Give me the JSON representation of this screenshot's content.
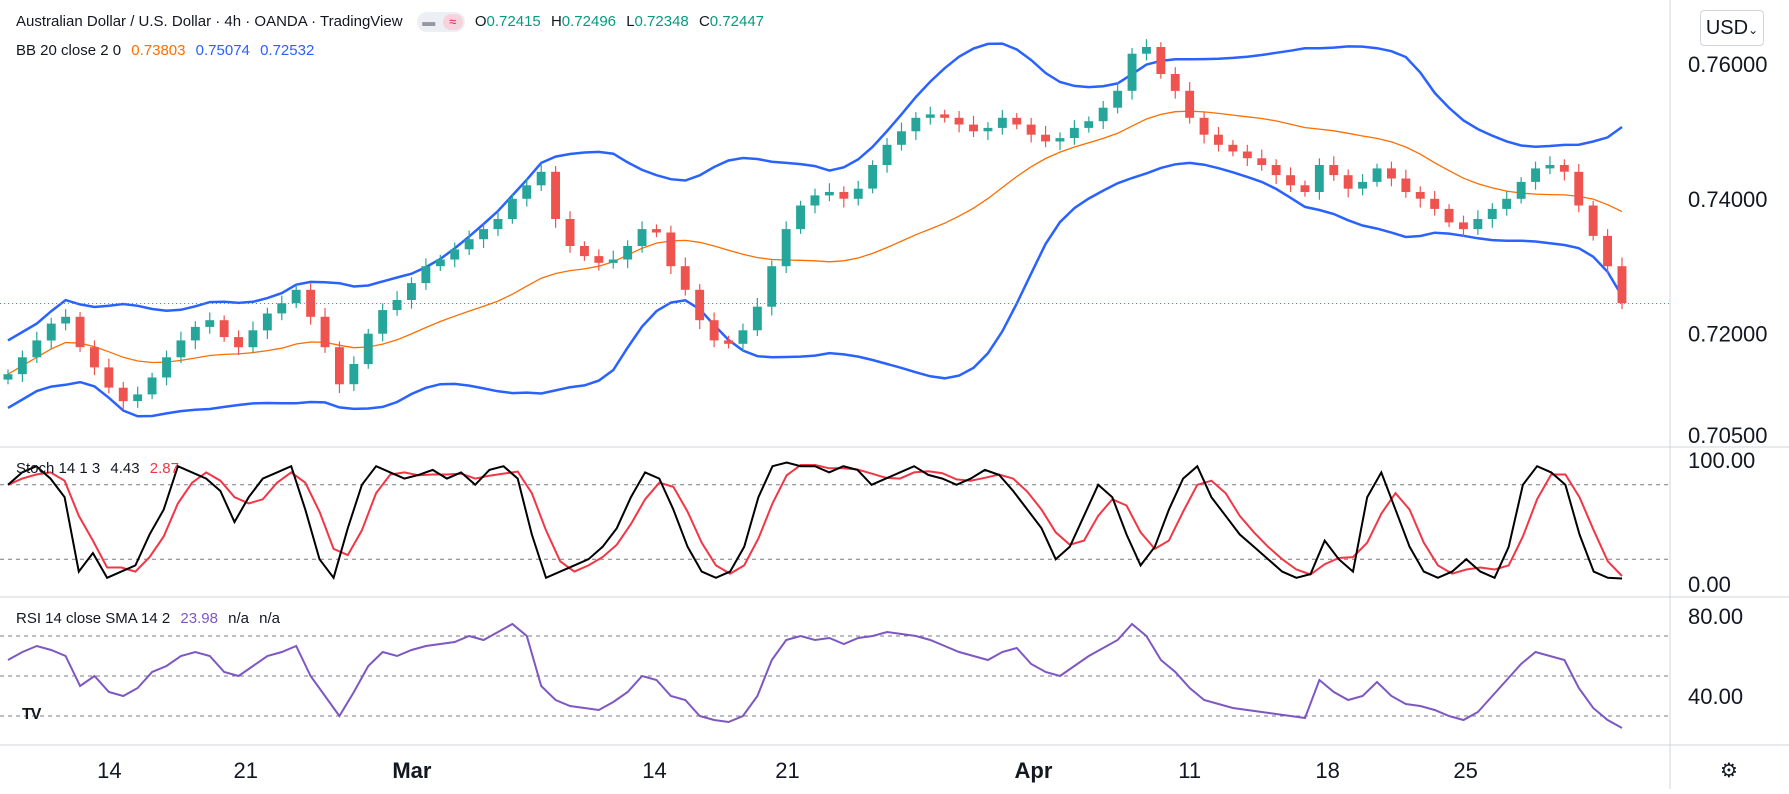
{
  "header": {
    "symbol_title": "Australian Dollar / U.S. Dollar · 4h · OANDA · TradingView",
    "ohlc": {
      "open_label": "O",
      "open": "0.72415",
      "high_label": "H",
      "high": "0.72496",
      "low_label": "L",
      "low": "0.72348",
      "close_label": "C",
      "close": "0.72447"
    }
  },
  "currency_button": "USD",
  "currency_chevron": "chevron-down-icon",
  "settings_icon": "gear-icon",
  "logo_text": "TV",
  "bb_legend": {
    "label": "BB 20 close 2 0",
    "middle": "0.73803",
    "upper": "0.75074",
    "lower": "0.72532"
  },
  "stoch_legend": {
    "label": "Stoch 14 1 3",
    "k": "4.43",
    "d": "2.87"
  },
  "rsi_legend": {
    "label": "RSI 14 close SMA 14 2",
    "value": "23.98",
    "sma": "n/a",
    "extra": "n/a"
  },
  "colors": {
    "up": "#26a69a",
    "down": "#ef5350",
    "bb_band": "#2962ff",
    "bb_basis": "#ff6d00",
    "stoch_k": "#000000",
    "stoch_d": "#f23645",
    "rsi": "#7e57c2",
    "text": "#131722",
    "legend_orange": "#ff6d00",
    "legend_blue": "#2962ff",
    "legend_purple": "#7e57c2",
    "legend_green": "#089981"
  },
  "chart_data": [
    {
      "type": "candlestick",
      "title": "Australian Dollar / U.S. Dollar · 4h · OANDA · TradingView",
      "x_tick_labels": [
        "14",
        "21",
        "Mar",
        "14",
        "21",
        "Apr",
        "11",
        "18",
        "25"
      ],
      "y_tick_labels": [
        "0.76000",
        "0.74000",
        "0.72000",
        "0.70500"
      ],
      "y_ticks": [
        0.76,
        0.74,
        0.72,
        0.705
      ],
      "ylim": [
        0.7035,
        0.7665
      ],
      "last_price": 0.72447,
      "close_approx": [
        0.714,
        0.7165,
        0.719,
        0.7215,
        0.7225,
        0.718,
        0.715,
        0.712,
        0.71,
        0.711,
        0.7135,
        0.7165,
        0.719,
        0.721,
        0.722,
        0.7195,
        0.718,
        0.7205,
        0.723,
        0.7245,
        0.7265,
        0.7225,
        0.718,
        0.7125,
        0.7155,
        0.72,
        0.7235,
        0.725,
        0.7275,
        0.73,
        0.731,
        0.7325,
        0.734,
        0.7355,
        0.737,
        0.74,
        0.742,
        0.744,
        0.737,
        0.733,
        0.7315,
        0.7305,
        0.731,
        0.733,
        0.7355,
        0.735,
        0.73,
        0.7265,
        0.722,
        0.719,
        0.7185,
        0.7205,
        0.724,
        0.73,
        0.7355,
        0.739,
        0.7405,
        0.741,
        0.74,
        0.7415,
        0.745,
        0.748,
        0.75,
        0.752,
        0.7525,
        0.752,
        0.751,
        0.75,
        0.7505,
        0.752,
        0.751,
        0.7495,
        0.7485,
        0.749,
        0.7505,
        0.7515,
        0.7535,
        0.756,
        0.7615,
        0.7625,
        0.7585,
        0.756,
        0.752,
        0.7495,
        0.748,
        0.747,
        0.746,
        0.745,
        0.7435,
        0.742,
        0.741,
        0.745,
        0.7435,
        0.7415,
        0.7425,
        0.7445,
        0.743,
        0.741,
        0.74,
        0.7385,
        0.7365,
        0.7355,
        0.737,
        0.7385,
        0.74,
        0.7425,
        0.7445,
        0.745,
        0.744,
        0.739,
        0.7345,
        0.73,
        0.7245
      ]
    },
    {
      "type": "line",
      "title": "BB 20 close 2 0",
      "series": [
        {
          "name": "upper",
          "value": 0.75074
        },
        {
          "name": "basis",
          "value": 0.73803
        },
        {
          "name": "lower",
          "value": 0.72532
        }
      ]
    },
    {
      "type": "line",
      "title": "Stoch 14 1 3",
      "y_tick_labels": [
        "100.00",
        "0.00"
      ],
      "ylim": [
        0,
        100
      ],
      "bands": [
        20,
        80
      ],
      "series": [
        {
          "name": "%K",
          "last": 4.43
        },
        {
          "name": "%D",
          "last": 2.87
        }
      ],
      "k_approx": [
        80,
        90,
        95,
        85,
        70,
        10,
        25,
        5,
        10,
        15,
        40,
        60,
        95,
        90,
        85,
        75,
        50,
        70,
        85,
        90,
        95,
        60,
        20,
        5,
        45,
        80,
        95,
        90,
        85,
        88,
        92,
        85,
        90,
        80,
        92,
        95,
        85,
        40,
        5,
        10,
        15,
        20,
        30,
        45,
        70,
        90,
        85,
        60,
        30,
        10,
        5,
        10,
        30,
        70,
        95,
        98,
        95,
        95,
        90,
        95,
        92,
        80,
        85,
        90,
        95,
        88,
        85,
        80,
        85,
        92,
        88,
        75,
        60,
        45,
        20,
        30,
        55,
        80,
        70,
        40,
        15,
        30,
        60,
        85,
        95,
        70,
        55,
        40,
        30,
        20,
        10,
        5,
        8,
        35,
        20,
        10,
        70,
        90,
        60,
        30,
        10,
        5,
        10,
        20,
        10,
        5,
        30,
        80,
        95,
        90,
        80,
        40,
        10,
        5,
        4.43
      ]
    },
    {
      "type": "line",
      "title": "RSI 14 close SMA 14 2",
      "y_tick_labels": [
        "80.00",
        "40.00"
      ],
      "ylim": [
        20,
        85
      ],
      "bands": [
        30,
        50,
        70
      ],
      "series": [
        {
          "name": "RSI",
          "last": 23.98
        }
      ],
      "rsi_approx": [
        58,
        62,
        65,
        63,
        60,
        45,
        50,
        42,
        40,
        44,
        52,
        55,
        60,
        62,
        60,
        52,
        50,
        55,
        60,
        62,
        65,
        50,
        40,
        30,
        42,
        55,
        62,
        60,
        63,
        65,
        66,
        67,
        70,
        68,
        72,
        76,
        70,
        45,
        38,
        35,
        34,
        33,
        37,
        42,
        50,
        48,
        40,
        38,
        30,
        28,
        27,
        30,
        40,
        58,
        68,
        70,
        68,
        69,
        66,
        69,
        70,
        72,
        71,
        70,
        68,
        65,
        62,
        60,
        58,
        62,
        64,
        56,
        52,
        50,
        55,
        60,
        64,
        68,
        76,
        70,
        58,
        52,
        44,
        38,
        36,
        34,
        33,
        32,
        31,
        30,
        29,
        48,
        42,
        38,
        40,
        47,
        40,
        36,
        35,
        33,
        30,
        28,
        32,
        40,
        48,
        56,
        62,
        60,
        58,
        44,
        34,
        28,
        23.98
      ]
    }
  ]
}
